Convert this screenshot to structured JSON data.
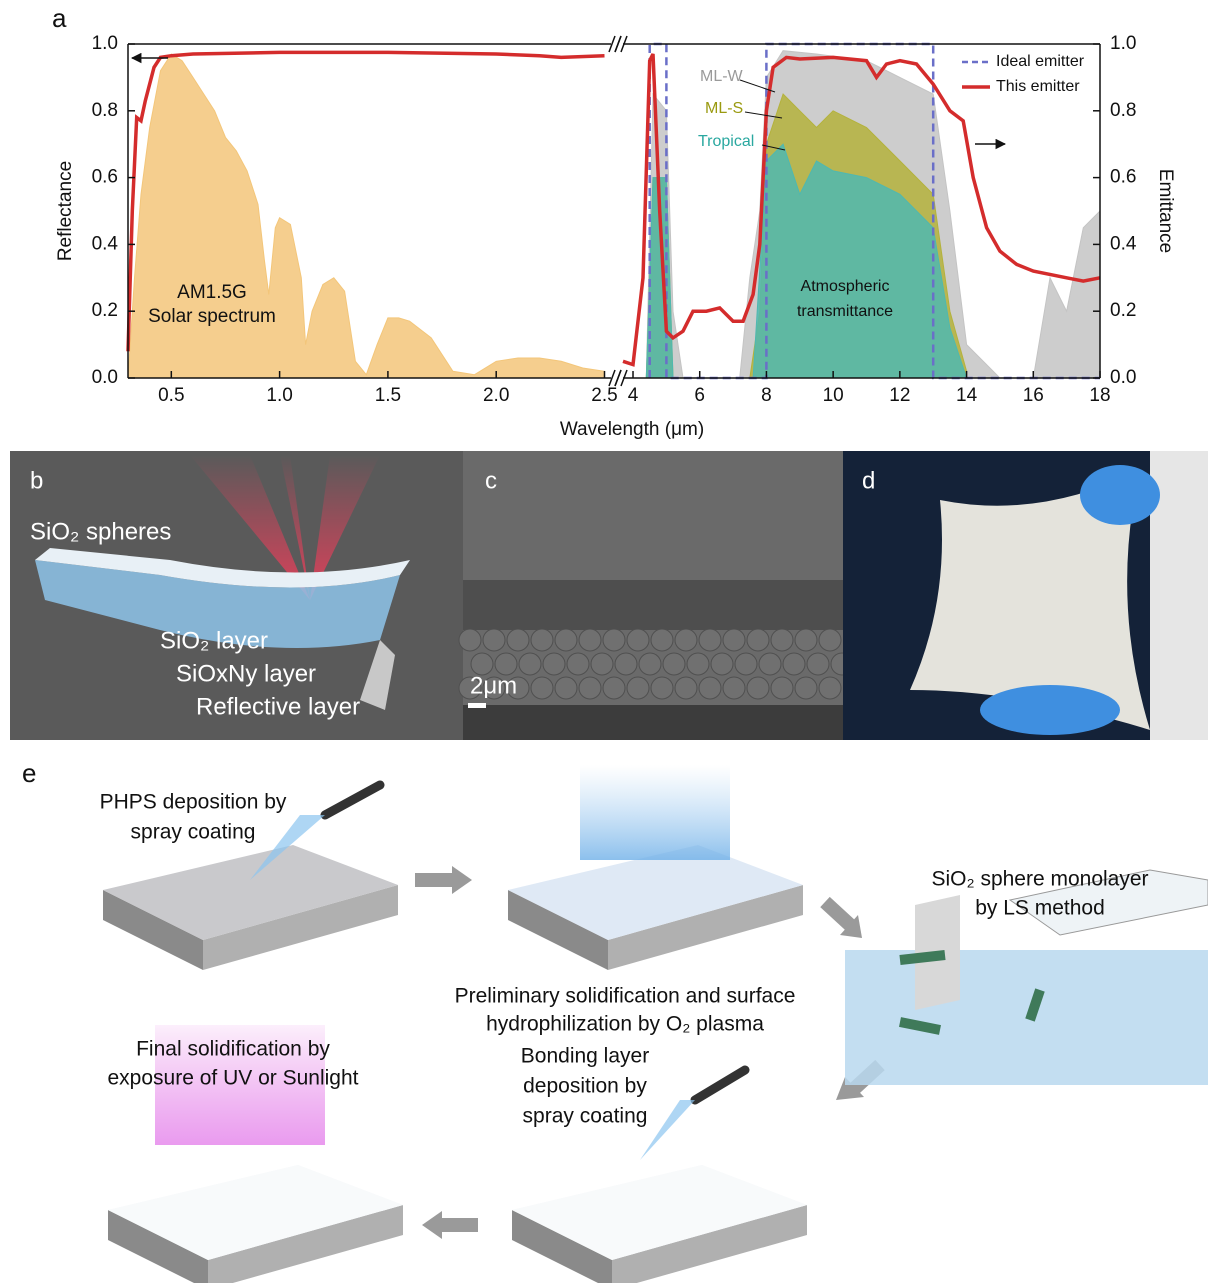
{
  "chart_data": [
    {
      "type": "line",
      "panel_label": "a",
      "y_label": "Reflectance",
      "xlim": [
        0.3,
        2.53
      ],
      "xticks": [
        0.5,
        {
          "value": 1,
          "label": "1.0"
        },
        1.5,
        {
          "value": 2,
          "label": "2.0"
        },
        2.5
      ],
      "ylim": [
        0,
        1
      ],
      "yticks": [
        {
          "value": 0,
          "label": "0.0"
        },
        0.2,
        0.4,
        0.6,
        0.8,
        {
          "value": 1,
          "label": "1.0"
        }
      ],
      "annotations": [
        "AM1.5G",
        "Solar spectrum"
      ],
      "series": [
        {
          "kind": "area",
          "color": "#f3c67a",
          "x": [
            0.3,
            0.33,
            0.36,
            0.4,
            0.45,
            0.5,
            0.55,
            0.6,
            0.65,
            0.7,
            0.75,
            0.8,
            0.85,
            0.9,
            0.93,
            0.95,
            0.98,
            1.0,
            1.05,
            1.1,
            1.12,
            1.15,
            1.2,
            1.25,
            1.3,
            1.35,
            1.4,
            1.45,
            1.5,
            1.55,
            1.6,
            1.7,
            1.8,
            1.9,
            2.0,
            2.1,
            2.2,
            2.3,
            2.4,
            2.5
          ],
          "values": [
            0.0,
            0.3,
            0.55,
            0.75,
            0.92,
            0.97,
            0.95,
            0.9,
            0.85,
            0.8,
            0.72,
            0.68,
            0.62,
            0.52,
            0.35,
            0.25,
            0.45,
            0.48,
            0.46,
            0.3,
            0.1,
            0.2,
            0.28,
            0.3,
            0.26,
            0.05,
            0.01,
            0.1,
            0.18,
            0.18,
            0.17,
            0.12,
            0.02,
            0.01,
            0.05,
            0.06,
            0.06,
            0.05,
            0.03,
            0.02
          ]
        },
        {
          "kind": "line",
          "color": "#d42c2c",
          "x": [
            0.3,
            0.32,
            0.34,
            0.36,
            0.38,
            0.42,
            0.45,
            0.5,
            0.6,
            1.0,
            1.5,
            2.0,
            2.2,
            2.3,
            2.5
          ],
          "values": [
            0.08,
            0.5,
            0.78,
            0.77,
            0.83,
            0.93,
            0.96,
            0.965,
            0.97,
            0.975,
            0.975,
            0.97,
            0.965,
            0.96,
            0.965
          ]
        }
      ]
    },
    {
      "type": "line",
      "x_label": "Wavelength (μm)",
      "y2_label": "Emittance",
      "legend": "upper right",
      "xlim": [
        3.7,
        18
      ],
      "xticks": [
        4,
        6,
        8,
        10,
        12,
        14,
        16,
        18
      ],
      "y2lim": [
        0,
        1
      ],
      "y2ticks": [
        {
          "value": 0,
          "label": "0.0"
        },
        0.2,
        0.4,
        0.6,
        0.8,
        {
          "value": 1,
          "label": "1.0"
        }
      ],
      "annotations": [
        "Atmospheric",
        "transmittance"
      ],
      "series": [
        {
          "name": "ML-W",
          "kind": "area",
          "axis": "y2",
          "color": "#c4c4c4",
          "label_color": "#9a9a9a",
          "in_legend": false,
          "x": [
            4.4,
            4.6,
            5.0,
            5.2,
            5.5,
            7.2,
            7.5,
            7.8,
            8.0,
            8.5,
            9.5,
            11.0,
            12.0,
            13.0,
            13.5,
            14.0,
            15.0,
            16.0,
            16.5,
            17.0,
            17.5,
            18.0
          ],
          "values": [
            0.0,
            0.85,
            0.8,
            0.2,
            0.0,
            0.0,
            0.3,
            0.5,
            0.9,
            0.98,
            0.97,
            0.95,
            0.9,
            0.85,
            0.5,
            0.1,
            0.0,
            0.0,
            0.3,
            0.2,
            0.45,
            0.5
          ]
        },
        {
          "name": "ML-S",
          "kind": "area",
          "axis": "y2",
          "color": "#b4b23c",
          "label_color": "#9a9a10",
          "in_legend": false,
          "x": [
            4.4,
            4.6,
            5.0,
            5.2,
            7.5,
            7.8,
            8.0,
            8.5,
            9.0,
            9.5,
            10.0,
            11.0,
            12.0,
            13.0,
            13.5,
            14.0
          ],
          "values": [
            0.0,
            0.6,
            0.6,
            0.0,
            0.0,
            0.2,
            0.7,
            0.85,
            0.8,
            0.75,
            0.8,
            0.75,
            0.65,
            0.55,
            0.2,
            0.02
          ]
        },
        {
          "name": "Tropical",
          "kind": "area",
          "axis": "y2",
          "color": "#4fb8b0",
          "label_color": "#2aa8a0",
          "in_legend": false,
          "x": [
            4.4,
            4.6,
            5.0,
            5.2,
            7.6,
            8.0,
            8.5,
            9.0,
            9.5,
            10.0,
            11.0,
            12.0,
            13.0,
            13.5,
            14.0
          ],
          "values": [
            0.0,
            0.6,
            0.6,
            0.0,
            0.0,
            0.65,
            0.7,
            0.55,
            0.65,
            0.62,
            0.6,
            0.55,
            0.45,
            0.15,
            0.0
          ]
        },
        {
          "name": "Ideal emitter",
          "kind": "dashed",
          "axis": "y2",
          "color": "#6a6fc8",
          "in_legend": true,
          "x": [
            4.5,
            4.5,
            5.0,
            5.0,
            8.0,
            8.0,
            13.0,
            13.0,
            18.0
          ],
          "values": [
            0,
            1,
            1,
            0,
            0,
            1,
            1,
            0,
            0
          ]
        },
        {
          "name": "This emitter",
          "kind": "line",
          "axis": "y2",
          "color": "#d42c2c",
          "in_legend": true,
          "x": [
            3.7,
            4.0,
            4.3,
            4.5,
            4.6,
            4.8,
            5.0,
            5.2,
            5.5,
            5.8,
            6.2,
            6.6,
            7.0,
            7.3,
            7.6,
            7.8,
            8.0,
            8.2,
            8.6,
            9.0,
            10.0,
            11.0,
            11.3,
            11.6,
            12.0,
            12.5,
            13.0,
            13.5,
            13.9,
            14.2,
            14.6,
            15.0,
            15.5,
            16.0,
            17.0,
            17.5,
            18.0
          ],
          "values": [
            0.05,
            0.04,
            0.3,
            0.95,
            0.97,
            0.5,
            0.14,
            0.12,
            0.14,
            0.2,
            0.2,
            0.21,
            0.17,
            0.17,
            0.25,
            0.4,
            0.8,
            0.93,
            0.96,
            0.955,
            0.96,
            0.95,
            0.9,
            0.94,
            0.95,
            0.94,
            0.88,
            0.8,
            0.77,
            0.6,
            0.45,
            0.38,
            0.34,
            0.32,
            0.3,
            0.29,
            0.3
          ]
        }
      ]
    }
  ],
  "panels": {
    "b": {
      "label": "b",
      "texts": [
        "SiO₂ spheres",
        "SiO₂ layer",
        "SiOxNy layer",
        "Reflective layer"
      ]
    },
    "c": {
      "label": "c",
      "scale_bar": "2μm"
    },
    "d": {
      "label": "d"
    },
    "e": {
      "label": "e",
      "steps": [
        [
          "PHPS deposition by",
          "spray coating"
        ],
        [
          "Preliminary solidification and surface",
          "hydrophilization by O₂ plasma"
        ],
        [
          "SiO₂ sphere monolayer",
          "by LS method"
        ],
        [
          "Bonding layer",
          "deposition by",
          "spray coating"
        ],
        [
          "Final solidification by",
          "exposure of UV or Sunlight"
        ]
      ]
    }
  }
}
